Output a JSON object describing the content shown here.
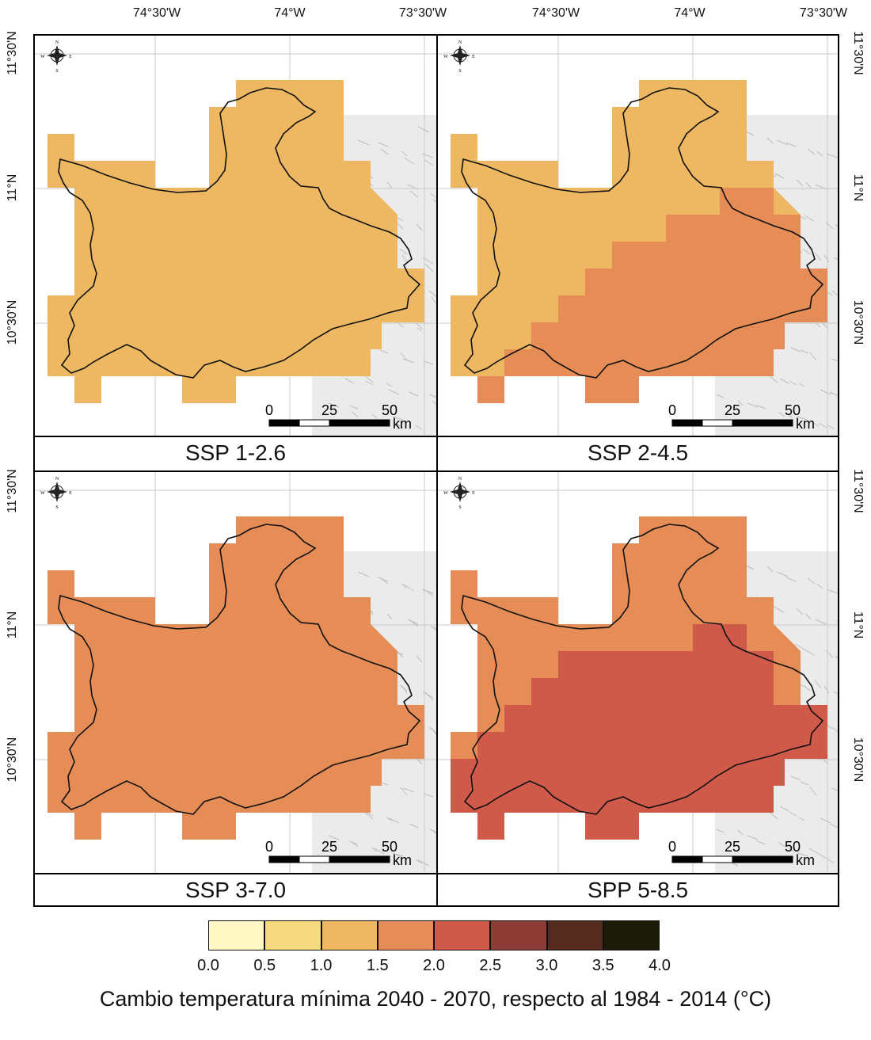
{
  "map": {
    "lon_labels": [
      "74°30'W",
      "74°W",
      "73°30'W"
    ],
    "lat_labels": [
      "11°30'N",
      "11°N",
      "10°30'N"
    ],
    "compass_letters": {
      "n": "N",
      "s": "S",
      "e": "E",
      "w": "W"
    },
    "scale": {
      "ticks": [
        "0",
        "25",
        "50"
      ],
      "unit": "km"
    },
    "panels": [
      {
        "id": "ssp126",
        "label": "SSP 1-2.6"
      },
      {
        "id": "ssp245",
        "label": "SSP 2-4.5"
      },
      {
        "id": "ssp370",
        "label": "SSP 3-7.0"
      },
      {
        "id": "spp585",
        "label": "SPP 5-8.5"
      }
    ]
  },
  "legend": {
    "title": "Cambio temperatura mínima 2040 - 2070, respecto al 1984 - 2014 (°C)",
    "ticks": [
      "0.0",
      "0.5",
      "1.0",
      "1.5",
      "2.0",
      "2.5",
      "3.0",
      "3.5",
      "4.0"
    ],
    "colors": [
      "#fff7c4",
      "#f6da80",
      "#edb861",
      "#e58c57",
      "#cf5a4a",
      "#8e3b36",
      "#552a1f",
      "#1c1a08"
    ]
  }
}
